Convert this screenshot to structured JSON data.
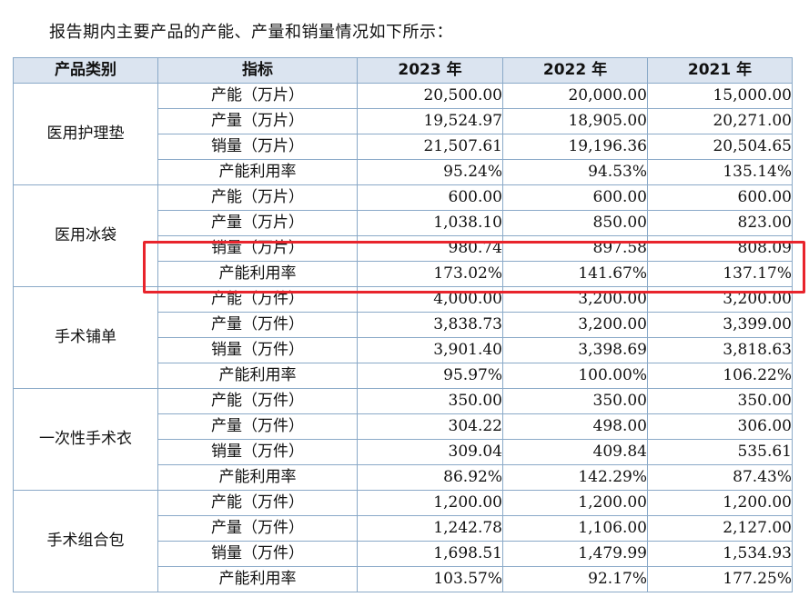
{
  "intro_text": "报告期内主要产品的产能、产量和销量情况如下所示：",
  "headers": [
    "产品类别",
    "指标",
    "2023 年",
    "2022 年",
    "2021 年"
  ],
  "categories": [
    {
      "name": "医用护理垫",
      "rows": [
        {
          "metric": "产能（万片）",
          "v2023": "20,500.00",
          "v2022": "20,000.00",
          "v2021": "15,000.00"
        },
        {
          "metric": "产量（万片）",
          "v2023": "19,524.97",
          "v2022": "18,905.00",
          "v2021": "20,271.00"
        },
        {
          "metric": "销量（万片）",
          "v2023": "21,507.61",
          "v2022": "19,196.36",
          "v2021": "20,504.65"
        },
        {
          "metric": "产能利用率",
          "v2023": "95.24%",
          "v2022": "94.53%",
          "v2021": "135.14%"
        }
      ]
    },
    {
      "name": "医用冰袋",
      "rows": [
        {
          "metric": "产能（万片）",
          "v2023": "600.00",
          "v2022": "600.00",
          "v2021": "600.00"
        },
        {
          "metric": "产量（万片）",
          "v2023": "1,038.10",
          "v2022": "850.00",
          "v2021": "823.00"
        },
        {
          "metric": "销量（万片）",
          "v2023": "980.74",
          "v2022": "897.58",
          "v2021": "808.09"
        },
        {
          "metric": "产能利用率",
          "v2023": "173.02%",
          "v2022": "141.67%",
          "v2021": "137.17%"
        }
      ]
    },
    {
      "name": "手术铺单",
      "rows": [
        {
          "metric": "产能（万件）",
          "v2023": "4,000.00",
          "v2022": "3,200.00",
          "v2021": "3,200.00"
        },
        {
          "metric": "产量（万件）",
          "v2023": "3,838.73",
          "v2022": "3,200.00",
          "v2021": "3,399.00"
        },
        {
          "metric": "销量（万件）",
          "v2023": "3,901.40",
          "v2022": "3,398.69",
          "v2021": "3,818.63"
        },
        {
          "metric": "产能利用率",
          "v2023": "95.97%",
          "v2022": "100.00%",
          "v2021": "106.22%"
        }
      ]
    },
    {
      "name": "一次性手术衣",
      "rows": [
        {
          "metric": "产能（万件）",
          "v2023": "350.00",
          "v2022": "350.00",
          "v2021": "350.00"
        },
        {
          "metric": "产量（万件）",
          "v2023": "304.22",
          "v2022": "498.00",
          "v2021": "306.00"
        },
        {
          "metric": "销量（万件）",
          "v2023": "309.04",
          "v2022": "409.84",
          "v2021": "535.61"
        },
        {
          "metric": "产能利用率",
          "v2023": "86.92%",
          "v2022": "142.29%",
          "v2021": "87.43%"
        }
      ]
    },
    {
      "name": "手术组合包",
      "rows": [
        {
          "metric": "产能（万件）",
          "v2023": "1,200.00",
          "v2022": "1,200.00",
          "v2021": "1,200.00"
        },
        {
          "metric": "产量（万件）",
          "v2023": "1,242.78",
          "v2022": "1,106.00",
          "v2021": "2,127.00"
        },
        {
          "metric": "销量（万件）",
          "v2023": "1,698.51",
          "v2022": "1,479.99",
          "v2021": "1,534.93"
        },
        {
          "metric": "产能利用率",
          "v2023": "103.57%",
          "v2022": "92.17%",
          "v2021": "177.25%"
        }
      ]
    }
  ],
  "highlight_color": "#e8242c",
  "header_bg": "#dbe4f0",
  "border_color": "#8aa9c8"
}
